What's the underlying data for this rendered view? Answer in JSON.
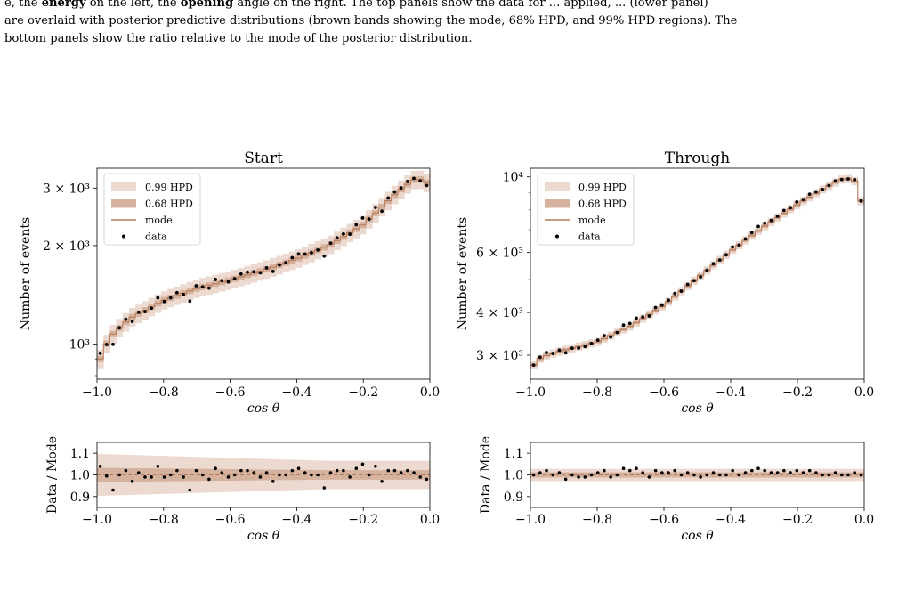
{
  "caption": {
    "line1_prefix": "e, the",
    "line1_bold": "energy",
    "line1_mid": "on the left, the",
    "line1_bold2": "opening",
    "line1_rest": "angle on the right. The top panels show the data for ... applied, ... (lower panel)",
    "line2": "are overlaid with posterior predictive distributions (brown bands showing the mode, 68% HPD, and 99% HPD regions). The",
    "line3": "bottom panels show the ratio relative to the mode of the posterior distribution."
  },
  "colors": {
    "band99": "#ecd9cf",
    "band68": "#d5b29e",
    "mode": "#b97b5a",
    "data": "#000000"
  },
  "legend": {
    "band99": "0.99 HPD",
    "band68": "0.68 HPD",
    "mode": "mode",
    "data": "data"
  },
  "chart_data": [
    {
      "type": "line",
      "title": "Start",
      "xlabel": "cos θ",
      "ylabel": "Number of events",
      "xlim": [
        -1.0,
        0.0
      ],
      "ylim": [
        780,
        3450
      ],
      "yscale": "log",
      "yticks": [
        {
          "value": 1000,
          "label": "10³"
        },
        {
          "value": 2000,
          "label": "2 × 10³"
        },
        {
          "value": 3000,
          "label": "3 × 10³"
        }
      ],
      "xticks": [
        "−1.0",
        "−0.8",
        "−0.6",
        "−0.4",
        "−0.2",
        "0.0"
      ],
      "legend_position": "upper-left",
      "mode_anchors": [
        [
          -1.0,
          840
        ],
        [
          -0.98,
          970
        ],
        [
          -0.95,
          1080
        ],
        [
          -0.9,
          1200
        ],
        [
          -0.8,
          1360
        ],
        [
          -0.7,
          1480
        ],
        [
          -0.6,
          1570
        ],
        [
          -0.5,
          1680
        ],
        [
          -0.4,
          1820
        ],
        [
          -0.3,
          2010
        ],
        [
          -0.2,
          2320
        ],
        [
          -0.1,
          2900
        ],
        [
          -0.05,
          3180
        ],
        [
          -0.02,
          3190
        ],
        [
          0.0,
          3050
        ]
      ],
      "band99_frac": 0.065,
      "band68_frac": 0.022,
      "data_ratio": [
        1.04,
        0.995,
        0.93,
        1.0,
        1.02,
        0.97,
        1.01,
        0.99,
        0.99,
        1.04,
        0.99,
        1.0,
        1.02,
        0.99,
        0.93,
        1.02,
        1.0,
        0.98,
        1.03,
        1.01,
        0.99,
        1.0,
        1.02,
        1.02,
        1.01,
        0.99,
        1.01,
        0.97,
        1.0,
        1.0,
        1.02,
        1.03,
        1.01,
        1.0,
        1.0,
        0.94,
        1.01,
        1.02,
        1.02,
        0.99,
        1.03,
        1.05,
        1.0,
        1.04,
        0.97,
        1.02,
        1.02,
        1.01,
        1.02,
        1.01,
        0.99,
        0.98
      ],
      "ratio": {
        "ylabel": "Data / Mode",
        "ylim": [
          0.85,
          1.15
        ],
        "yticks": [
          "0.9",
          "1.0",
          "1.1"
        ],
        "band99_frac": 0.065,
        "band68_frac": 0.022
      }
    },
    {
      "type": "line",
      "title": "Through",
      "xlabel": "cos θ",
      "ylabel": "Number of events",
      "xlim": [
        -1.0,
        0.0
      ],
      "ylim": [
        2550,
        10600
      ],
      "yscale": "log",
      "yticks": [
        {
          "value": 3000,
          "label": "3 × 10³"
        },
        {
          "value": 4000,
          "label": "4 × 10³"
        },
        {
          "value": 6000,
          "label": "6 × 10³"
        },
        {
          "value": 10000,
          "label": "10⁴"
        }
      ],
      "xticks": [
        "−1.0",
        "−0.8",
        "−0.6",
        "−0.4",
        "−0.2",
        "0.0"
      ],
      "legend_position": "upper-left",
      "mode_anchors": [
        [
          -1.0,
          2720
        ],
        [
          -0.98,
          2900
        ],
        [
          -0.95,
          3000
        ],
        [
          -0.9,
          3100
        ],
        [
          -0.8,
          3280
        ],
        [
          -0.7,
          3650
        ],
        [
          -0.6,
          4200
        ],
        [
          -0.5,
          5050
        ],
        [
          -0.4,
          6050
        ],
        [
          -0.3,
          7150
        ],
        [
          -0.2,
          8300
        ],
        [
          -0.1,
          9500
        ],
        [
          -0.06,
          9900
        ],
        [
          -0.03,
          9800
        ],
        [
          -0.01,
          8500
        ],
        [
          0.0,
          8400
        ]
      ],
      "band99_frac": 0.028,
      "band68_frac": 0.012,
      "data_ratio": [
        1.0,
        1.01,
        1.02,
        1.0,
        1.01,
        0.98,
        1.0,
        0.99,
        0.99,
        1.0,
        1.01,
        1.02,
        0.99,
        1.0,
        1.03,
        1.02,
        1.03,
        1.01,
        0.99,
        1.02,
        1.01,
        1.01,
        1.02,
        1.0,
        1.01,
        1.0,
        0.99,
        1.0,
        1.01,
        1.0,
        1.0,
        1.02,
        1.0,
        1.01,
        1.02,
        1.03,
        1.02,
        1.01,
        1.01,
        1.02,
        1.01,
        1.02,
        1.01,
        1.02,
        1.01,
        1.0,
        1.0,
        1.01,
        1.0,
        1.0,
        1.01,
        1.0
      ],
      "ratio": {
        "ylabel": "Data / Mode",
        "ylim": [
          0.85,
          1.15
        ],
        "yticks": [
          "0.9",
          "1.0",
          "1.1"
        ],
        "band99_frac": 0.028,
        "band68_frac": 0.012
      }
    }
  ]
}
